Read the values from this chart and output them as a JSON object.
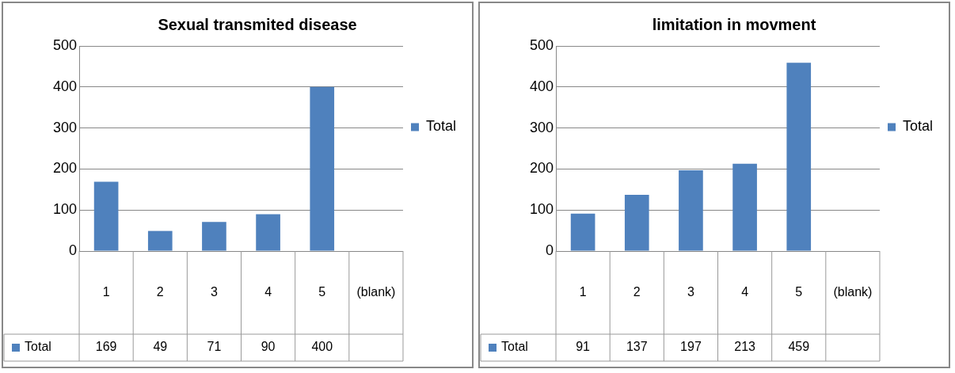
{
  "chart_data": [
    {
      "type": "bar",
      "title": "Sexual transmited disease",
      "categories": [
        "1",
        "2",
        "3",
        "4",
        "5",
        "(blank)"
      ],
      "series": [
        {
          "name": "Total",
          "color": "#4f81bd",
          "values": [
            169,
            49,
            71,
            90,
            400,
            null
          ]
        }
      ],
      "ylim": [
        0,
        500
      ],
      "yticks": [
        0,
        100,
        200,
        300,
        400,
        500
      ],
      "grid": "y",
      "legend": "right",
      "data_labels": true
    },
    {
      "type": "bar",
      "title": "limitation in movment",
      "categories": [
        "1",
        "2",
        "3",
        "4",
        "5",
        "(blank)"
      ],
      "series": [
        {
          "name": "Total",
          "color": "#4f81bd",
          "values": [
            91,
            137,
            197,
            213,
            459,
            null
          ]
        }
      ],
      "ylim": [
        0,
        500
      ],
      "yticks": [
        0,
        100,
        200,
        300,
        400,
        500
      ],
      "grid": "y",
      "legend": "right",
      "data_labels": true
    }
  ]
}
